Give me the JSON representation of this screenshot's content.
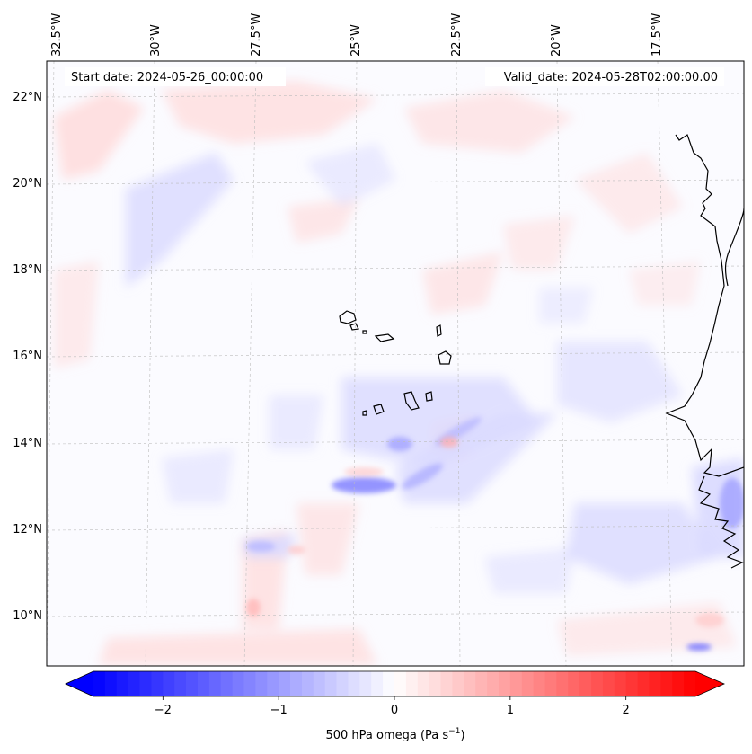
{
  "map": {
    "start_date_text": "Start date: 2024-05-26_00:00:00",
    "valid_date_text": "Valid_date: 2024-05-28T02:00:00.00",
    "longitude_labels": [
      "32.5°W",
      "30°W",
      "27.5°W",
      "25°W",
      "22.5°W",
      "20°W",
      "17.5°W"
    ],
    "latitude_labels": [
      "22°N",
      "20°N",
      "18°N",
      "16°N",
      "14°N",
      "12°N",
      "10°N"
    ],
    "gridlines": true,
    "coastline_color": "#000000",
    "field_colors": {
      "negative": "#0000ff",
      "zero": "#ffffff",
      "positive": "#ff0000"
    }
  },
  "colorbar": {
    "label": "500 hPa omega (Pa s",
    "label_exponent": "−1",
    "label_close": ")",
    "range": [
      -2.6,
      2.6
    ],
    "extend": "both",
    "ticks": [
      {
        "value": -2,
        "label": "−2"
      },
      {
        "value": -1,
        "label": "−1"
      },
      {
        "value": 0,
        "label": "0"
      },
      {
        "value": 1,
        "label": "1"
      },
      {
        "value": 2,
        "label": "2"
      }
    ]
  }
}
